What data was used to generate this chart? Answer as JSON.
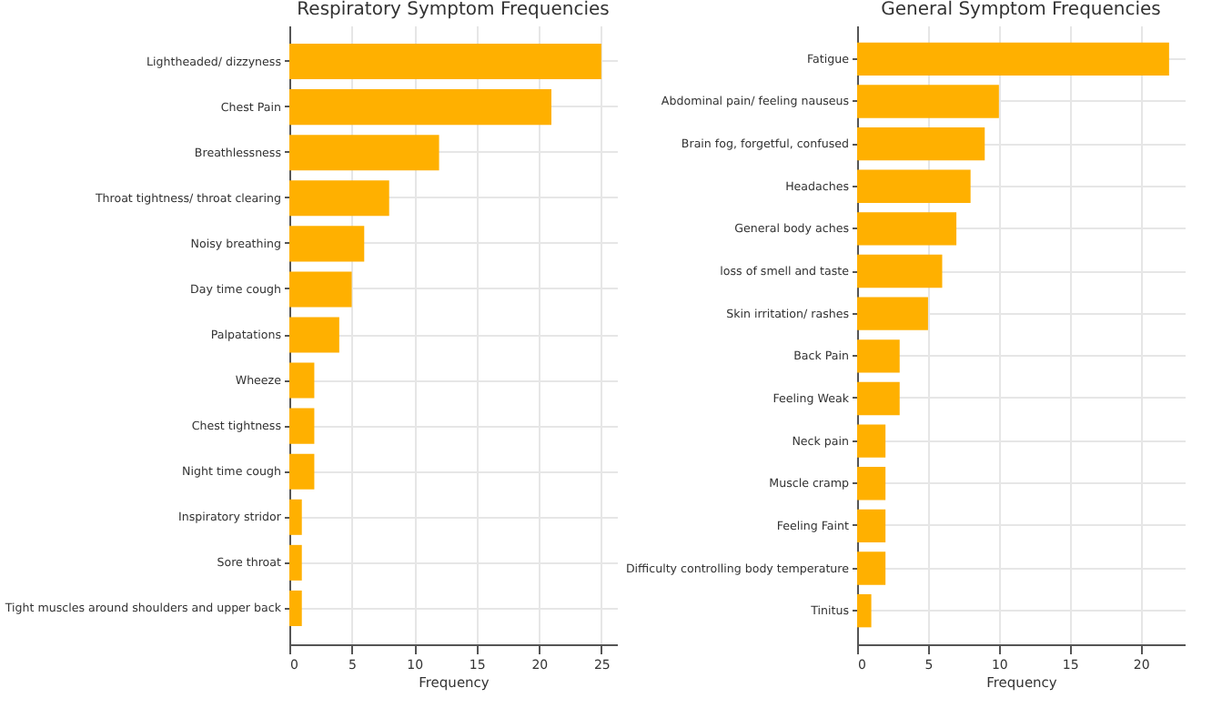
{
  "chart_data": [
    {
      "type": "bar",
      "orientation": "horizontal",
      "title": "Respiratory Symptom Frequencies",
      "xlabel": "Frequency",
      "categories": [
        "Lightheaded/ dizzyness",
        "Chest Pain",
        "Breathlessness",
        "Throat tightness/ throat clearing",
        "Noisy breathing",
        "Day time cough",
        "Palpatations",
        "Wheeze",
        "Chest tightness",
        "Night time cough",
        "Inspiratory stridor",
        "Sore throat",
        "Tight muscles around shoulders and upper back"
      ],
      "values": [
        25,
        21,
        12,
        8,
        6,
        5,
        4,
        2,
        2,
        2,
        1,
        1,
        1
      ],
      "color": "#ffb000",
      "xlim": [
        0,
        26.25
      ],
      "xticks": [
        0,
        5,
        10,
        15,
        20,
        25
      ],
      "grid": true
    },
    {
      "type": "bar",
      "orientation": "horizontal",
      "title": "General Symptom Frequencies",
      "xlabel": "Frequency",
      "categories": [
        "Fatigue",
        "Abdominal pain/ feeling nauseus",
        "Brain fog, forgetful, confused",
        "Headaches",
        "General body aches",
        "loss of smell and taste",
        "Skin irritation/ rashes",
        "Back Pain",
        "Feeling Weak",
        "Neck pain",
        "Muscle cramp",
        "Feeling Faint",
        "Difficulty controlling body temperature",
        "Tinitus"
      ],
      "values": [
        22,
        10,
        9,
        8,
        7,
        6,
        5,
        3,
        3,
        2,
        2,
        2,
        2,
        1
      ],
      "color": "#ffb000",
      "xlim": [
        0,
        23.1
      ],
      "xticks": [
        0,
        5,
        10,
        15,
        20
      ],
      "grid": true
    }
  ]
}
